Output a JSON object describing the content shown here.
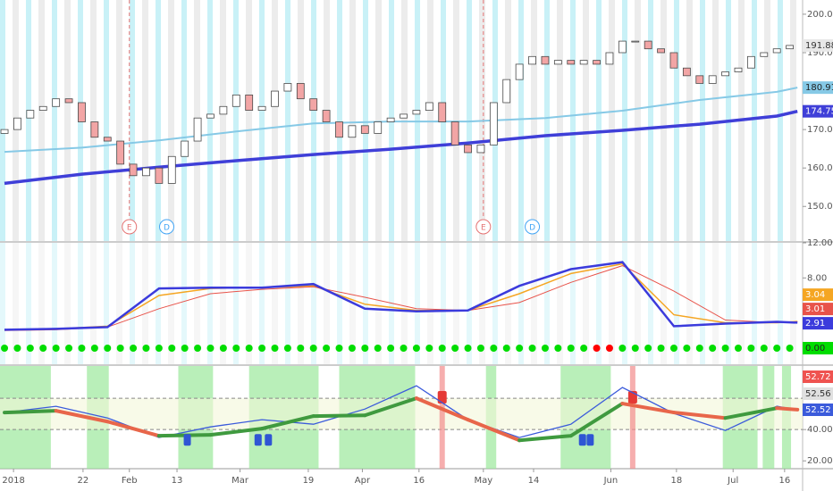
{
  "chart_data": [
    {
      "type": "candlestick",
      "x": [
        0,
        1,
        2,
        3,
        4,
        5,
        6,
        7,
        8,
        9,
        10,
        11,
        12,
        13,
        14,
        15,
        16,
        17,
        18,
        19,
        20,
        21,
        22,
        23,
        24,
        25,
        26,
        27,
        28,
        29,
        30,
        31,
        32,
        33,
        34,
        35,
        36,
        37,
        38,
        39,
        40,
        41,
        42,
        43,
        44,
        45,
        46,
        47,
        48,
        49,
        50,
        51,
        52,
        53,
        54,
        55,
        56,
        57,
        58,
        59,
        60,
        61
      ],
      "open": [
        169,
        170,
        173,
        175,
        176,
        178,
        177,
        172,
        168,
        167,
        161,
        158,
        160,
        156,
        163,
        167,
        173,
        174,
        176,
        179,
        175,
        176,
        180,
        182,
        178,
        175,
        172,
        168,
        171,
        169,
        172,
        173,
        174,
        175,
        177,
        172,
        166,
        164,
        166,
        177,
        183,
        187,
        189,
        187,
        188,
        187,
        188,
        187,
        190,
        193,
        193,
        191,
        190,
        186,
        184,
        182,
        184,
        185,
        186,
        189,
        190,
        191
      ],
      "close": [
        170,
        173,
        175,
        176,
        178,
        177,
        172,
        168,
        167,
        161,
        158,
        160,
        156,
        163,
        167,
        173,
        174,
        176,
        179,
        175,
        176,
        180,
        182,
        178,
        175,
        172,
        168,
        171,
        169,
        172,
        173,
        174,
        175,
        177,
        172,
        166,
        164,
        166,
        177,
        183,
        187,
        189,
        187,
        188,
        187,
        188,
        187,
        190,
        193,
        193,
        191,
        190,
        186,
        184,
        182,
        184,
        185,
        186,
        189,
        190,
        191,
        191.88
      ],
      "up_color": "#ffffff",
      "down_color": "#f2a5a5",
      "edge_color": "#4a4a4a",
      "series": [
        {
          "color": "#86c9e6",
          "width": 2,
          "x": [
            0,
            6,
            12,
            18,
            24,
            30,
            36,
            42,
            48,
            54,
            60,
            61.6
          ],
          "values": [
            164.2,
            165.3,
            167.2,
            169.5,
            171.6,
            172.1,
            172.1,
            173,
            174.9,
            177.7,
            179.8,
            180.91
          ]
        },
        {
          "color": "#3f3fd8",
          "width": 3.5,
          "x": [
            0,
            6,
            12,
            18,
            24,
            30,
            36,
            42,
            48,
            54,
            60,
            61.6
          ],
          "values": [
            156,
            158.4,
            160.2,
            161.9,
            163.5,
            164.9,
            166.5,
            168.4,
            169.8,
            171.4,
            173.5,
            174.75
          ]
        }
      ],
      "events": [
        {
          "x": 9.7,
          "label": "E",
          "color": "#e57373",
          "line": true
        },
        {
          "x": 12.6,
          "label": "D",
          "color": "#42a5f5",
          "line": false
        },
        {
          "x": 37.2,
          "label": "E",
          "color": "#e57373",
          "line": true
        },
        {
          "x": 41.0,
          "label": "D",
          "color": "#42a5f5",
          "line": false
        }
      ],
      "ylim": [
        141,
        203.7
      ],
      "yticks": [
        {
          "value": 150,
          "label": "150.00"
        },
        {
          "value": 160,
          "label": "160.00"
        },
        {
          "value": 170,
          "label": "170.00"
        },
        {
          "value": 180,
          "label": "180.00"
        },
        {
          "value": 190,
          "label": "190.00"
        },
        {
          "value": 200,
          "label": "200.00"
        }
      ]
    },
    {
      "type": "line",
      "series": [
        {
          "color": "#f5a623",
          "width": 1.5,
          "x": [
            0,
            4,
            8,
            12,
            16,
            20,
            24,
            28,
            32,
            36,
            40,
            44,
            48,
            52,
            56,
            60,
            61.6
          ],
          "values": [
            2.1,
            2.2,
            2.5,
            6.0,
            6.8,
            6.9,
            7.1,
            5.0,
            4.3,
            4.3,
            6.2,
            8.5,
            9.6,
            3.8,
            2.9,
            2.9,
            3.04
          ]
        },
        {
          "color": "#e8534a",
          "width": 1,
          "x": [
            0,
            4,
            8,
            12,
            16,
            20,
            24,
            28,
            32,
            36,
            40,
            44,
            48,
            52,
            56,
            60,
            61.6
          ],
          "values": [
            2.0,
            2.1,
            2.4,
            4.5,
            6.2,
            6.7,
            7.0,
            5.8,
            4.5,
            4.3,
            5.2,
            7.5,
            9.4,
            6.5,
            3.2,
            2.9,
            3.01
          ]
        },
        {
          "color": "#3b3bdc",
          "width": 2.5,
          "x": [
            0,
            4,
            8,
            12,
            16,
            20,
            24,
            28,
            32,
            36,
            40,
            44,
            48,
            52,
            56,
            60,
            61.6
          ],
          "values": [
            2.1,
            2.2,
            2.4,
            6.8,
            6.9,
            6.9,
            7.3,
            4.5,
            4.2,
            4.3,
            7.1,
            9.0,
            9.8,
            2.5,
            2.8,
            3.0,
            2.91
          ]
        }
      ],
      "dots": {
        "level": {
          "value": 0,
          "label": "0.00"
        },
        "color": "#00dd00",
        "alert_color": "#ff0000",
        "alerts": [
          46,
          47
        ]
      },
      "ylim": [
        -1.83,
        12
      ],
      "yticks": [
        {
          "value": 8,
          "label": "8.00"
        },
        {
          "value": 12,
          "label": "12.00"
        }
      ]
    },
    {
      "type": "oscillator",
      "x": [
        0,
        4,
        8,
        12,
        16,
        20,
        24,
        28,
        32,
        36,
        40,
        44,
        48,
        52,
        56,
        60,
        61.6
      ],
      "ma": {
        "values": [
          50.9,
          52.0,
          45.1,
          36.0,
          36.6,
          40.6,
          48.6,
          49.1,
          60.0,
          46.3,
          33.1,
          36.0,
          56.6,
          50.9,
          47.4,
          53.7,
          52.72
        ],
        "up_color": "#3f9a3f",
        "down_color": "#e8664a",
        "box_color": "#ef5350"
      },
      "line": {
        "values": [
          50.9,
          54.9,
          47.4,
          34.9,
          41.7,
          46.3,
          43.4,
          53.1,
          68.0,
          46.3,
          34.9,
          43.4,
          66.9,
          50.3,
          39.4,
          54.9,
          52.52
        ],
        "color": "#3b5bdb"
      },
      "ref_level": 52.56,
      "band": [
        40,
        60
      ],
      "zones": [
        [
          -0.35,
          3.6
        ],
        [
          6.4,
          8.1
        ],
        [
          13.5,
          16.2
        ],
        [
          19.0,
          24.4
        ],
        [
          26.0,
          31.9
        ],
        [
          37.4,
          38.2
        ],
        [
          43.2,
          47.1
        ],
        [
          55.8,
          58.5
        ],
        [
          58.9,
          59.8
        ],
        [
          60.4,
          61.1
        ]
      ],
      "alerts": [
        34.0,
        48.8
      ],
      "markers": [
        {
          "x": 14.2,
          "y": 33.7
        },
        {
          "x": 19.7,
          "y": 33.7
        },
        {
          "x": 20.5,
          "y": 33.7
        },
        {
          "x": 44.9,
          "y": 33.7
        },
        {
          "x": 45.5,
          "y": 33.7
        }
      ],
      "ylim": [
        15,
        80.6
      ],
      "yticks": [
        {
          "value": 20,
          "label": "20.00"
        },
        {
          "value": 40,
          "label": "40.00"
        }
      ],
      "xlim": [
        -0.35,
        62
      ],
      "xticks": [
        {
          "value": 0.7,
          "label": "2018"
        },
        {
          "value": 6.1,
          "label": "22"
        },
        {
          "value": 9.7,
          "label": "Feb"
        },
        {
          "value": 13.4,
          "label": "13"
        },
        {
          "value": 18.3,
          "label": "Mar"
        },
        {
          "value": 23.6,
          "label": "19"
        },
        {
          "value": 27.8,
          "label": "Apr"
        },
        {
          "value": 32.2,
          "label": "16"
        },
        {
          "value": 37.2,
          "label": "May"
        },
        {
          "value": 41.1,
          "label": "14"
        },
        {
          "value": 47.1,
          "label": "Jun"
        },
        {
          "value": 52.2,
          "label": "18"
        },
        {
          "value": 56.6,
          "label": "Jul"
        },
        {
          "value": 60.6,
          "label": "16"
        }
      ]
    }
  ]
}
